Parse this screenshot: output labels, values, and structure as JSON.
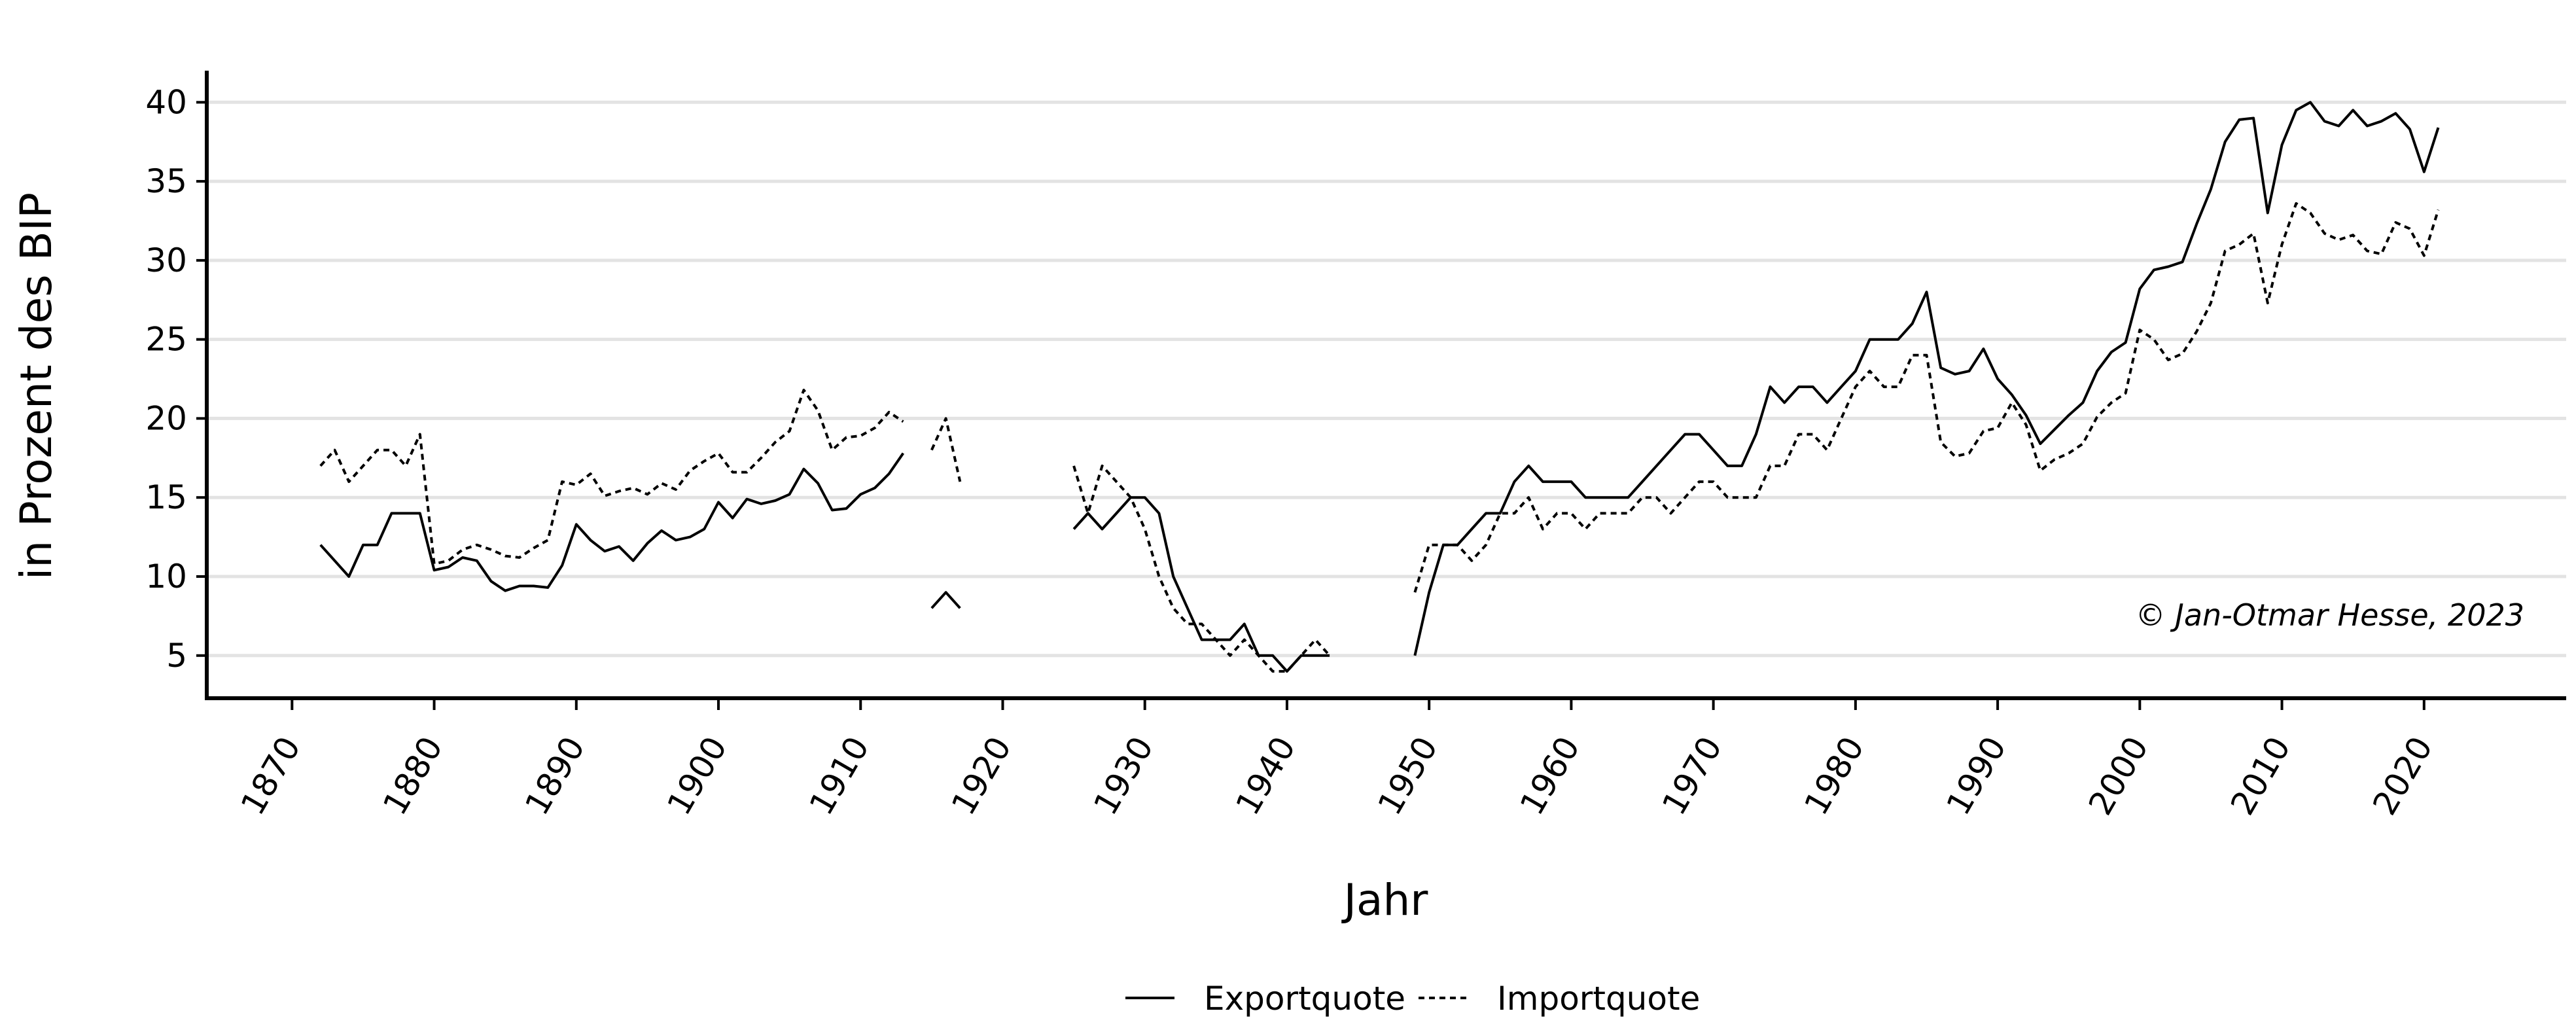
{
  "chart_data": {
    "type": "line",
    "title": "",
    "xlabel": "Jahr",
    "ylabel": "in Prozent des BIP",
    "xlim": [
      1864,
      2030
    ],
    "ylim": [
      2.3,
      42
    ],
    "x_ticks": [
      1870,
      1880,
      1890,
      1900,
      1910,
      1920,
      1930,
      1940,
      1950,
      1960,
      1970,
      1980,
      1990,
      2000,
      2010,
      2020
    ],
    "y_ticks": [
      5,
      10,
      15,
      20,
      25,
      30,
      35,
      40
    ],
    "grid": "horizontal",
    "legend_position": "bottom",
    "annotation": "© Jan-Otmar Hesse, 2023",
    "series": [
      {
        "name": "Exportquote",
        "style": "solid",
        "segments": [
          [
            [
              1872,
              12
            ],
            [
              1873,
              11
            ],
            [
              1874,
              10
            ],
            [
              1875,
              12
            ],
            [
              1876,
              12
            ],
            [
              1877,
              14
            ],
            [
              1878,
              14
            ],
            [
              1879,
              14
            ],
            [
              1880,
              10.4
            ],
            [
              1881,
              10.6
            ],
            [
              1882,
              11.2
            ],
            [
              1883,
              11
            ],
            [
              1884,
              9.7
            ],
            [
              1885,
              9.1
            ],
            [
              1886,
              9.4
            ],
            [
              1887,
              9.4
            ],
            [
              1888,
              9.3
            ],
            [
              1889,
              10.7
            ],
            [
              1890,
              13.3
            ],
            [
              1891,
              12.3
            ],
            [
              1892,
              11.6
            ],
            [
              1893,
              11.9
            ],
            [
              1894,
              11
            ],
            [
              1895,
              12.1
            ],
            [
              1896,
              12.9
            ],
            [
              1897,
              12.3
            ],
            [
              1898,
              12.5
            ],
            [
              1899,
              13
            ],
            [
              1900,
              14.7
            ],
            [
              1901,
              13.7
            ],
            [
              1902,
              14.9
            ],
            [
              1903,
              14.6
            ],
            [
              1904,
              14.8
            ],
            [
              1905,
              15.2
            ],
            [
              1906,
              16.8
            ],
            [
              1907,
              15.9
            ],
            [
              1908,
              14.2
            ],
            [
              1909,
              14.3
            ],
            [
              1910,
              15.2
            ],
            [
              1911,
              15.6
            ],
            [
              1912,
              16.5
            ],
            [
              1913,
              17.8
            ]
          ],
          [
            [
              1915,
              8
            ],
            [
              1916,
              9
            ],
            [
              1917,
              8
            ]
          ],
          [
            [
              1925,
              13
            ],
            [
              1926,
              14
            ],
            [
              1927,
              13
            ],
            [
              1928,
              14
            ],
            [
              1929,
              15
            ],
            [
              1930,
              15
            ],
            [
              1931,
              14
            ],
            [
              1932,
              10
            ],
            [
              1933,
              8
            ],
            [
              1934,
              6
            ],
            [
              1935,
              6
            ],
            [
              1936,
              6
            ],
            [
              1937,
              7
            ],
            [
              1938,
              5
            ],
            [
              1939,
              5
            ],
            [
              1940,
              4
            ],
            [
              1941,
              5
            ],
            [
              1942,
              5
            ],
            [
              1943,
              5
            ]
          ],
          [
            [
              1949,
              5
            ],
            [
              1950,
              9
            ],
            [
              1951,
              12
            ],
            [
              1952,
              12
            ],
            [
              1953,
              13
            ],
            [
              1954,
              14
            ],
            [
              1955,
              14
            ],
            [
              1956,
              16
            ],
            [
              1957,
              17
            ],
            [
              1958,
              16
            ],
            [
              1959,
              16
            ],
            [
              1960,
              16
            ],
            [
              1961,
              15
            ],
            [
              1962,
              15
            ],
            [
              1963,
              15
            ],
            [
              1964,
              15
            ],
            [
              1965,
              16
            ],
            [
              1966,
              17
            ],
            [
              1967,
              18
            ],
            [
              1968,
              19
            ],
            [
              1969,
              19
            ],
            [
              1970,
              18
            ],
            [
              1971,
              17
            ],
            [
              1972,
              17
            ],
            [
              1973,
              19
            ],
            [
              1974,
              22
            ],
            [
              1975,
              21
            ],
            [
              1976,
              22
            ],
            [
              1977,
              22
            ],
            [
              1978,
              21
            ],
            [
              1979,
              22
            ],
            [
              1980,
              23
            ],
            [
              1981,
              25
            ],
            [
              1982,
              25
            ],
            [
              1983,
              25
            ],
            [
              1984,
              26
            ],
            [
              1985,
              28
            ],
            [
              1986,
              23.2
            ],
            [
              1987,
              22.8
            ],
            [
              1988,
              23
            ],
            [
              1989,
              24.4
            ],
            [
              1990,
              22.5
            ],
            [
              1991,
              21.5
            ],
            [
              1992,
              20.2
            ],
            [
              1993,
              18.4
            ],
            [
              1994,
              19.3
            ],
            [
              1995,
              20.2
            ],
            [
              1996,
              21
            ],
            [
              1997,
              23
            ],
            [
              1998,
              24.2
            ],
            [
              1999,
              24.8
            ],
            [
              2000,
              28.2
            ],
            [
              2001,
              29.4
            ],
            [
              2002,
              29.6
            ],
            [
              2003,
              29.9
            ],
            [
              2004,
              32.3
            ],
            [
              2005,
              34.5
            ],
            [
              2006,
              37.5
            ],
            [
              2007,
              38.9
            ],
            [
              2008,
              39
            ],
            [
              2009,
              33
            ],
            [
              2010,
              37.3
            ],
            [
              2011,
              39.5
            ],
            [
              2012,
              40
            ],
            [
              2013,
              38.8
            ],
            [
              2014,
              38.5
            ],
            [
              2015,
              39.5
            ],
            [
              2016,
              38.5
            ],
            [
              2017,
              38.8
            ],
            [
              2018,
              39.3
            ],
            [
              2019,
              38.3
            ],
            [
              2020,
              35.6
            ],
            [
              2021,
              38.4
            ]
          ]
        ]
      },
      {
        "name": "Importquote",
        "style": "dashed",
        "segments": [
          [
            [
              1872,
              17
            ],
            [
              1873,
              18
            ],
            [
              1874,
              16
            ],
            [
              1875,
              17
            ],
            [
              1876,
              18
            ],
            [
              1877,
              18
            ],
            [
              1878,
              17
            ],
            [
              1879,
              19
            ],
            [
              1880,
              10.8
            ],
            [
              1881,
              11
            ],
            [
              1882,
              11.7
            ],
            [
              1883,
              12
            ],
            [
              1884,
              11.7
            ],
            [
              1885,
              11.3
            ],
            [
              1886,
              11.2
            ],
            [
              1887,
              11.8
            ],
            [
              1888,
              12.3
            ],
            [
              1889,
              16
            ],
            [
              1890,
              15.8
            ],
            [
              1891,
              16.5
            ],
            [
              1892,
              15.1
            ],
            [
              1893,
              15.4
            ],
            [
              1894,
              15.6
            ],
            [
              1895,
              15.2
            ],
            [
              1896,
              15.9
            ],
            [
              1897,
              15.5
            ],
            [
              1898,
              16.7
            ],
            [
              1899,
              17.3
            ],
            [
              1900,
              17.8
            ],
            [
              1901,
              16.6
            ],
            [
              1902,
              16.6
            ],
            [
              1903,
              17.5
            ],
            [
              1904,
              18.5
            ],
            [
              1905,
              19.2
            ],
            [
              1906,
              21.8
            ],
            [
              1907,
              20.5
            ],
            [
              1908,
              18
            ],
            [
              1909,
              18.8
            ],
            [
              1910,
              18.9
            ],
            [
              1911,
              19.4
            ],
            [
              1912,
              20.4
            ],
            [
              1913,
              19.8
            ]
          ],
          [
            [
              1915,
              18
            ],
            [
              1916,
              20
            ],
            [
              1917,
              16
            ]
          ],
          [
            [
              1925,
              17
            ],
            [
              1926,
              14
            ],
            [
              1927,
              17
            ],
            [
              1928,
              16
            ],
            [
              1929,
              15
            ],
            [
              1930,
              13
            ],
            [
              1931,
              10
            ],
            [
              1932,
              8
            ],
            [
              1933,
              7
            ],
            [
              1934,
              7
            ],
            [
              1935,
              6
            ],
            [
              1936,
              5
            ],
            [
              1937,
              6
            ],
            [
              1938,
              5
            ],
            [
              1939,
              4
            ],
            [
              1940,
              4
            ],
            [
              1941,
              5
            ],
            [
              1942,
              6
            ],
            [
              1943,
              5
            ]
          ],
          [
            [
              1949,
              9
            ],
            [
              1950,
              12
            ],
            [
              1951,
              12
            ],
            [
              1952,
              12
            ],
            [
              1953,
              11
            ],
            [
              1954,
              12
            ],
            [
              1955,
              14
            ],
            [
              1956,
              14
            ],
            [
              1957,
              15
            ],
            [
              1958,
              13
            ],
            [
              1959,
              14
            ],
            [
              1960,
              14
            ],
            [
              1961,
              13
            ],
            [
              1962,
              14
            ],
            [
              1963,
              14
            ],
            [
              1964,
              14
            ],
            [
              1965,
              15
            ],
            [
              1966,
              15
            ],
            [
              1967,
              14
            ],
            [
              1968,
              15
            ],
            [
              1969,
              16
            ],
            [
              1970,
              16
            ],
            [
              1971,
              15
            ],
            [
              1972,
              15
            ],
            [
              1973,
              15
            ],
            [
              1974,
              17
            ],
            [
              1975,
              17
            ],
            [
              1976,
              19
            ],
            [
              1977,
              19
            ],
            [
              1978,
              18
            ],
            [
              1979,
              20
            ],
            [
              1980,
              22
            ],
            [
              1981,
              23
            ],
            [
              1982,
              22
            ],
            [
              1983,
              22
            ],
            [
              1984,
              24
            ],
            [
              1985,
              24
            ],
            [
              1986,
              18.5
            ],
            [
              1987,
              17.6
            ],
            [
              1988,
              17.8
            ],
            [
              1989,
              19.2
            ],
            [
              1990,
              19.4
            ],
            [
              1991,
              21
            ],
            [
              1992,
              19.6
            ],
            [
              1993,
              16.7
            ],
            [
              1994,
              17.4
            ],
            [
              1995,
              17.8
            ],
            [
              1996,
              18.4
            ],
            [
              1997,
              20.1
            ],
            [
              1998,
              21
            ],
            [
              1999,
              21.6
            ],
            [
              2000,
              25.6
            ],
            [
              2001,
              25
            ],
            [
              2002,
              23.7
            ],
            [
              2003,
              24.1
            ],
            [
              2004,
              25.5
            ],
            [
              2005,
              27.3
            ],
            [
              2006,
              30.6
            ],
            [
              2007,
              31
            ],
            [
              2008,
              31.7
            ],
            [
              2009,
              27.3
            ],
            [
              2010,
              31
            ],
            [
              2011,
              33.6
            ],
            [
              2012,
              33
            ],
            [
              2013,
              31.7
            ],
            [
              2014,
              31.3
            ],
            [
              2015,
              31.6
            ],
            [
              2016,
              30.6
            ],
            [
              2017,
              30.4
            ],
            [
              2018,
              32.4
            ],
            [
              2019,
              32
            ],
            [
              2020,
              30.3
            ],
            [
              2021,
              33.2
            ]
          ]
        ]
      }
    ]
  }
}
